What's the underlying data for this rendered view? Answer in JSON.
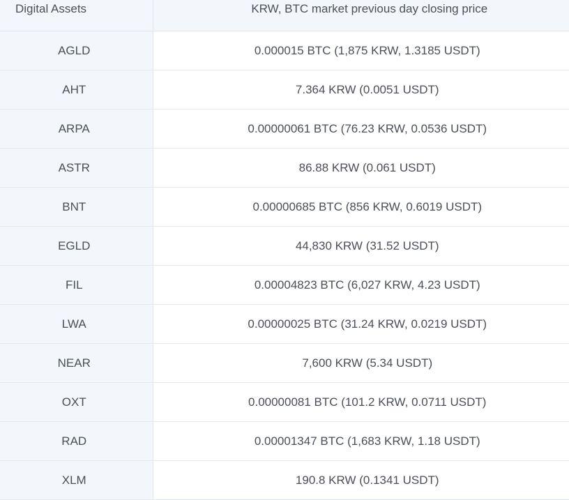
{
  "table": {
    "headers": {
      "asset": "Digital Assets",
      "price": "KRW, BTC market previous day closing price"
    },
    "rows": [
      {
        "asset": "AGLD",
        "price": "0.000015 BTC (1,875 KRW, 1.3185 USDT)"
      },
      {
        "asset": "AHT",
        "price": "7.364 KRW (0.0051 USDT)"
      },
      {
        "asset": "ARPA",
        "price": "0.00000061 BTC (76.23 KRW, 0.0536 USDT)"
      },
      {
        "asset": "ASTR",
        "price": "86.88 KRW (0.061 USDT)"
      },
      {
        "asset": "BNT",
        "price": "0.00000685 BTC (856 KRW, 0.6019 USDT)"
      },
      {
        "asset": "EGLD",
        "price": "44,830 KRW (31.52 USDT)"
      },
      {
        "asset": "FIL",
        "price": "0.00004823 BTC (6,027 KRW, 4.23 USDT)"
      },
      {
        "asset": "LWA",
        "price": "0.00000025 BTC (31.24 KRW, 0.0219 USDT)"
      },
      {
        "asset": "NEAR",
        "price": "7,600 KRW (5.34 USDT)"
      },
      {
        "asset": "OXT",
        "price": "0.00000081 BTC (101.2 KRW, 0.0711 USDT)"
      },
      {
        "asset": "RAD",
        "price": "0.00001347 BTC (1,683 KRW, 1.18 USDT)"
      },
      {
        "asset": "XLM",
        "price": "190.8 KRW (0.1341 USDT)"
      }
    ]
  }
}
